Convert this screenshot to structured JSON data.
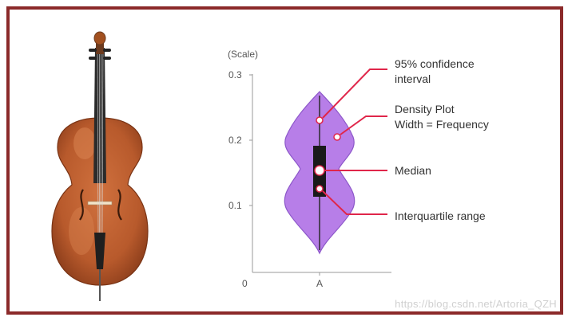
{
  "chart": {
    "y_title": "(Scale)",
    "y_ticks": [
      "0.3",
      "0.2",
      "0.1"
    ],
    "x_zero": "0",
    "x_category": "A"
  },
  "annotations": {
    "ci_line1": "95% confidence",
    "ci_line2": "interval",
    "density_line1": "Density Plot",
    "density_line2": "Width = Frequency",
    "median": "Median",
    "iqr": "Interquartile range"
  },
  "watermark": "https://blog.csdn.net/Artoria_QZH",
  "colors": {
    "frame": "#8b2a2a",
    "violin_fill": "#b77ee8",
    "violin_stroke": "#8c57c9",
    "annotation_line": "#e0264a",
    "box": "#1a1a1a",
    "cello_body": "#b85a2c"
  }
}
